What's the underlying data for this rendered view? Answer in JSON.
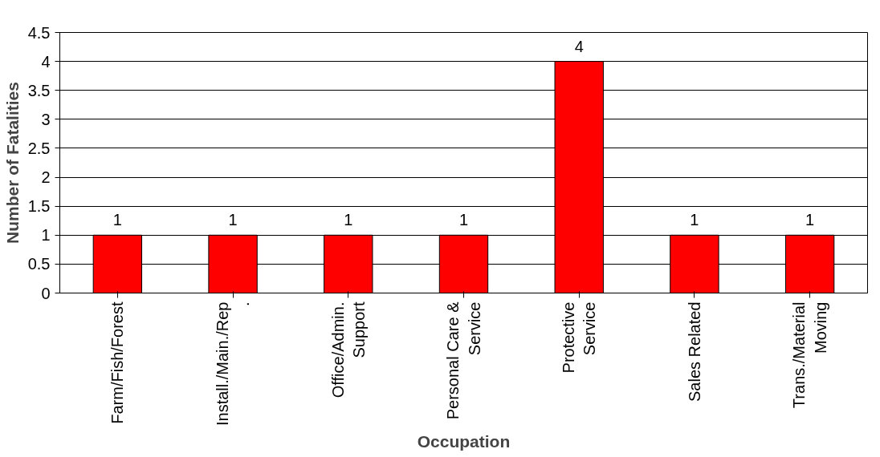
{
  "chart_data": {
    "type": "bar",
    "xlabel": "Occupation",
    "ylabel": "Number of Fatalities",
    "categories": [
      "Farm/Fish/Forest",
      "Install./Main./Rep.",
      "Office/Admin. Support",
      "Personal Care & Service",
      "Protective Service",
      "Sales Related",
      "Trans./Material Moving"
    ],
    "values": [
      1,
      1,
      1,
      1,
      4,
      1,
      1
    ],
    "color": "#ff0000",
    "ylim": [
      0,
      4.5
    ],
    "yticks": [
      0,
      0.5,
      1,
      1.5,
      2,
      2.5,
      3,
      3.5,
      4,
      4.5
    ],
    "grid": "y",
    "data_labels": true
  }
}
